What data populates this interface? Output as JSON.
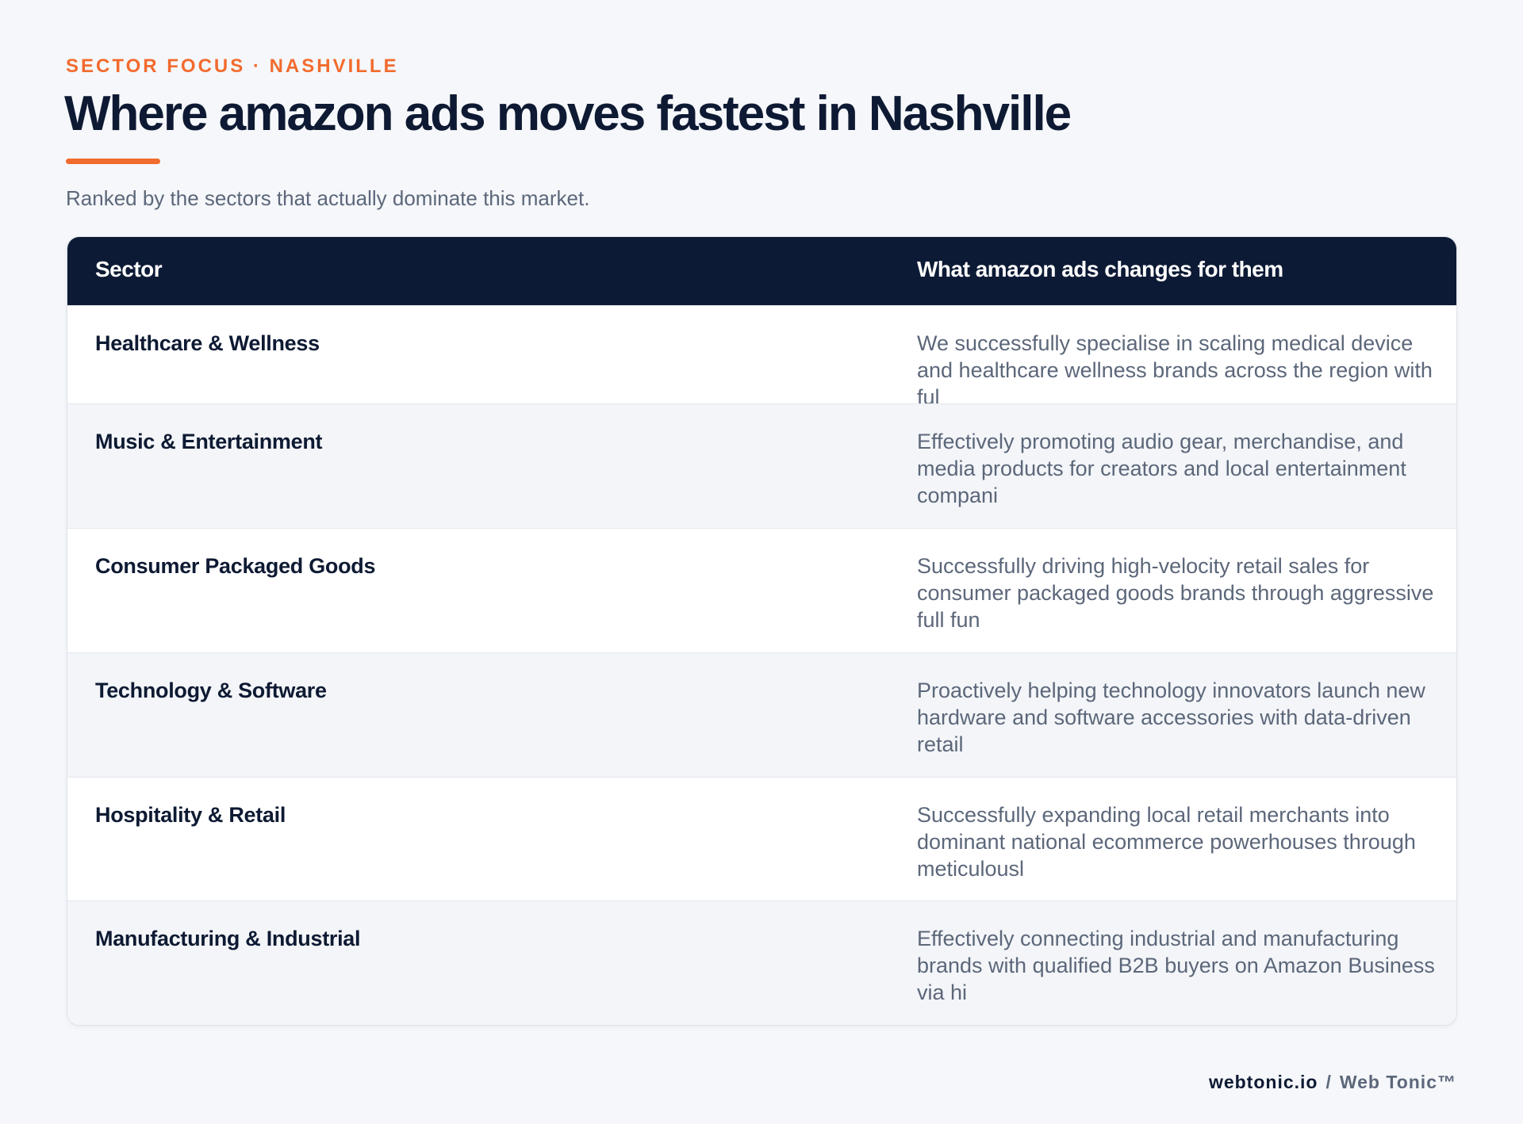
{
  "eyebrow": "SECTOR FOCUS · NASHVILLE",
  "title": "Where amazon ads moves fastest in Nashville",
  "subtitle": "Ranked by the sectors that actually dominate this market.",
  "table": {
    "headers": [
      "Sector",
      "What amazon ads changes for them"
    ],
    "rows": [
      {
        "sector": "Healthcare & Wellness",
        "description": "We successfully specialise in scaling medical device and healthcare wellness brands across the region with ful"
      },
      {
        "sector": "Music & Entertainment",
        "description": "Effectively promoting audio gear, merchandise, and media products for creators and local entertainment compani"
      },
      {
        "sector": "Consumer Packaged Goods",
        "description": "Successfully driving high-velocity retail sales for consumer packaged goods brands through aggressive full fun"
      },
      {
        "sector": "Technology & Software",
        "description": "Proactively helping technology innovators launch new hardware and software accessories with data-driven retail"
      },
      {
        "sector": "Hospitality & Retail",
        "description": "Successfully expanding local retail merchants into dominant national ecommerce powerhouses through meticulousl"
      },
      {
        "sector": "Manufacturing & Industrial",
        "description": "Effectively connecting industrial and manufacturing brands with qualified B2B buyers on Amazon Business via hi"
      }
    ]
  },
  "footer": {
    "domain": "webtonic.io",
    "separator": "/",
    "brand": "Web Tonic™"
  },
  "colors": {
    "accent": "#f26b2e",
    "header_bg": "#0c1a35",
    "title_text": "#0e1a33",
    "muted_text": "#5c677a"
  }
}
